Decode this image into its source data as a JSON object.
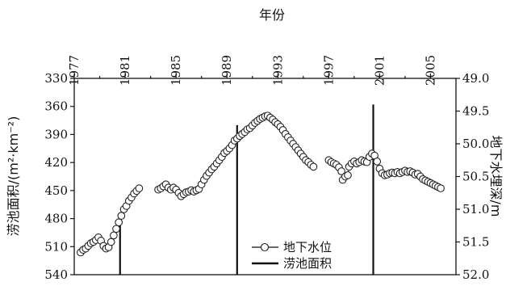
{
  "chart_data": {
    "type": "line",
    "title": "",
    "top_axis": {
      "label": "年份",
      "range": [
        1977,
        2007
      ],
      "ticks": [
        "1977",
        "1981",
        "1985",
        "1989",
        "1993",
        "1997",
        "2001",
        "2005"
      ]
    },
    "left_axis": {
      "label": "涝池面积/(m²·km⁻²)",
      "range": [
        330,
        540
      ],
      "reversed": true,
      "ticks": [
        "330",
        "360",
        "390",
        "420",
        "450",
        "480",
        "510",
        "540"
      ]
    },
    "right_axis": {
      "label": "地下水埋深/m",
      "range": [
        49.0,
        52.0
      ],
      "reversed": true,
      "ticks": [
        "49.0",
        "49.5",
        "50.0",
        "50.5",
        "51.0",
        "51.5",
        "52.0"
      ]
    },
    "legend": {
      "position": "bottom-center",
      "entries": [
        "地下水位",
        "涝池面积"
      ]
    },
    "grid": false,
    "series": [
      {
        "name": "地下水位",
        "style": "open-circle markers with connecting line",
        "axis": "right",
        "points": [
          [
            1977.5,
            51.66
          ],
          [
            1977.7,
            51.62
          ],
          [
            1977.9,
            51.6
          ],
          [
            1978.1,
            51.56
          ],
          [
            1978.3,
            51.52
          ],
          [
            1978.5,
            51.5
          ],
          [
            1978.7,
            51.47
          ],
          [
            1978.9,
            51.43
          ],
          [
            1979.1,
            51.48
          ],
          [
            1979.3,
            51.56
          ],
          [
            1979.5,
            51.6
          ],
          [
            1979.7,
            51.58
          ],
          [
            1979.9,
            51.5
          ],
          [
            1980.1,
            51.4
          ],
          [
            1980.3,
            51.3
          ],
          [
            1980.5,
            51.2
          ],
          [
            1980.7,
            51.1
          ],
          [
            1980.9,
            51.0
          ],
          [
            1981.1,
            50.95
          ],
          [
            1981.3,
            50.87
          ],
          [
            1981.5,
            50.82
          ],
          [
            1981.7,
            50.76
          ],
          [
            1981.9,
            50.72
          ],
          [
            1982.1,
            50.68
          ],
          [
            1983.6,
            50.7
          ],
          [
            1983.8,
            50.68
          ],
          [
            1984.0,
            50.65
          ],
          [
            1984.2,
            50.62
          ],
          [
            1984.4,
            50.67
          ],
          [
            1984.6,
            50.7
          ],
          [
            1984.8,
            50.67
          ],
          [
            1985.0,
            50.7
          ],
          [
            1985.2,
            50.75
          ],
          [
            1985.4,
            50.8
          ],
          [
            1985.6,
            50.77
          ],
          [
            1985.8,
            50.74
          ],
          [
            1986.0,
            50.73
          ],
          [
            1986.2,
            50.71
          ],
          [
            1986.4,
            50.73
          ],
          [
            1986.6,
            50.71
          ],
          [
            1986.8,
            50.69
          ],
          [
            1987.0,
            50.62
          ],
          [
            1987.2,
            50.55
          ],
          [
            1987.4,
            50.49
          ],
          [
            1987.6,
            50.44
          ],
          [
            1987.8,
            50.39
          ],
          [
            1988.0,
            50.35
          ],
          [
            1988.2,
            50.3
          ],
          [
            1988.4,
            50.25
          ],
          [
            1988.6,
            50.2
          ],
          [
            1988.8,
            50.14
          ],
          [
            1989.0,
            50.11
          ],
          [
            1989.2,
            50.07
          ],
          [
            1989.4,
            50.02
          ],
          [
            1989.6,
            49.95
          ],
          [
            1989.8,
            49.92
          ],
          [
            1990.0,
            49.88
          ],
          [
            1990.2,
            49.85
          ],
          [
            1990.4,
            49.82
          ],
          [
            1990.6,
            49.78
          ],
          [
            1990.8,
            49.76
          ],
          [
            1991.0,
            49.72
          ],
          [
            1991.2,
            49.68
          ],
          [
            1991.4,
            49.65
          ],
          [
            1991.6,
            49.62
          ],
          [
            1991.8,
            49.6
          ],
          [
            1992.0,
            49.58
          ],
          [
            1992.2,
            49.57
          ],
          [
            1992.4,
            49.6
          ],
          [
            1992.6,
            49.63
          ],
          [
            1992.8,
            49.67
          ],
          [
            1993.0,
            49.7
          ],
          [
            1993.2,
            49.74
          ],
          [
            1993.4,
            49.79
          ],
          [
            1993.6,
            49.85
          ],
          [
            1993.8,
            49.9
          ],
          [
            1994.0,
            49.95
          ],
          [
            1994.2,
            50.0
          ],
          [
            1994.4,
            50.05
          ],
          [
            1994.6,
            50.1
          ],
          [
            1994.8,
            50.15
          ],
          [
            1995.0,
            50.2
          ],
          [
            1995.2,
            50.25
          ],
          [
            1995.4,
            50.28
          ],
          [
            1995.6,
            50.32
          ],
          [
            1995.8,
            50.35
          ],
          [
            1997.0,
            50.25
          ],
          [
            1997.2,
            50.28
          ],
          [
            1997.4,
            50.3
          ],
          [
            1997.6,
            50.32
          ],
          [
            1997.8,
            50.36
          ],
          [
            1998.0,
            50.42
          ],
          [
            1998.1,
            50.55
          ],
          [
            1998.3,
            50.5
          ],
          [
            1998.5,
            50.48
          ],
          [
            1998.6,
            50.35
          ],
          [
            1998.8,
            50.3
          ],
          [
            1999.0,
            50.27
          ],
          [
            1999.2,
            50.3
          ],
          [
            1999.4,
            50.28
          ],
          [
            1999.6,
            50.25
          ],
          [
            1999.8,
            50.27
          ],
          [
            2000.0,
            50.28
          ],
          [
            2000.2,
            50.2
          ],
          [
            2000.4,
            50.15
          ],
          [
            2000.6,
            50.18
          ],
          [
            2000.8,
            50.27
          ],
          [
            2001.0,
            50.38
          ],
          [
            2001.2,
            50.45
          ],
          [
            2001.4,
            50.48
          ],
          [
            2001.6,
            50.47
          ],
          [
            2001.8,
            50.45
          ],
          [
            2002.0,
            50.44
          ],
          [
            2002.2,
            50.45
          ],
          [
            2002.4,
            50.43
          ],
          [
            2002.6,
            50.45
          ],
          [
            2002.8,
            50.43
          ],
          [
            2003.0,
            50.41
          ],
          [
            2003.2,
            50.43
          ],
          [
            2003.4,
            50.42
          ],
          [
            2003.6,
            50.44
          ],
          [
            2003.8,
            50.47
          ],
          [
            2004.0,
            50.46
          ],
          [
            2004.2,
            50.5
          ],
          [
            2004.4,
            50.54
          ],
          [
            2004.6,
            50.56
          ],
          [
            2004.8,
            50.58
          ],
          [
            2005.0,
            50.6
          ],
          [
            2005.2,
            50.62
          ],
          [
            2005.4,
            50.64
          ],
          [
            2005.6,
            50.66
          ],
          [
            2005.8,
            50.68
          ]
        ]
      },
      {
        "name": "涝池面积",
        "style": "vertical bars from bottom of frame",
        "axis": "left",
        "points": [
          [
            1980.6,
            485
          ],
          [
            1989.8,
            380
          ],
          [
            2000.5,
            358
          ]
        ]
      }
    ]
  }
}
